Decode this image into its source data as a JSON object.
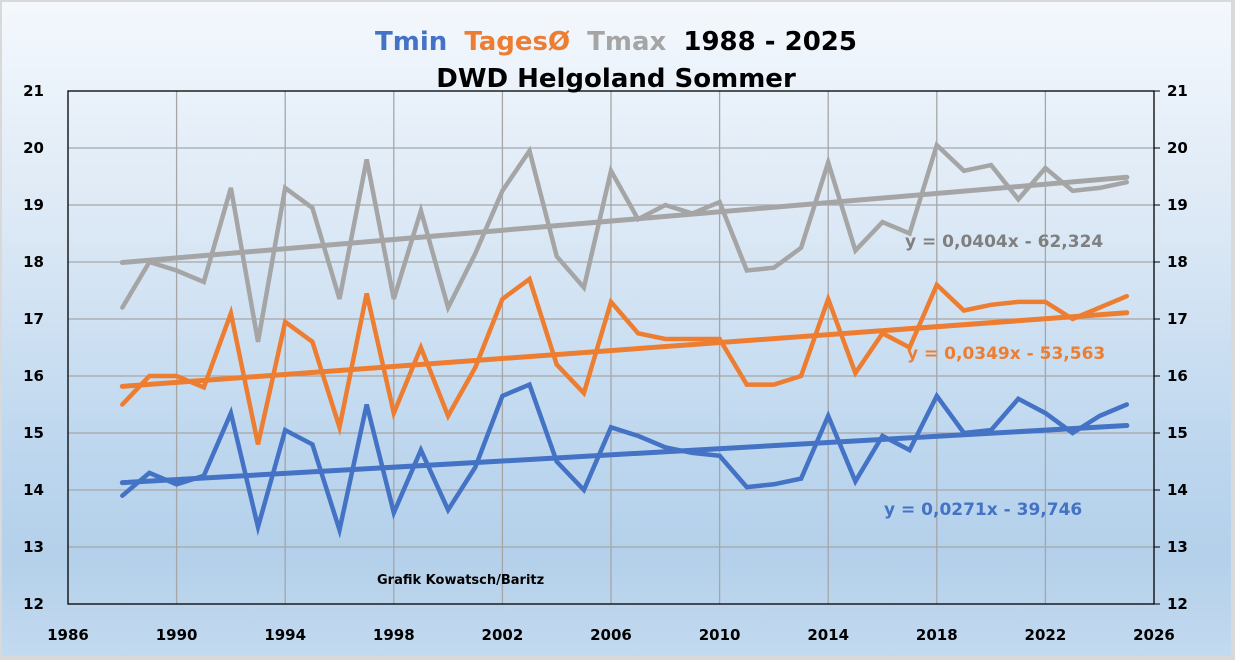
{
  "chart_data": {
    "type": "line",
    "title_parts": [
      {
        "text": "Tmin",
        "color": "#4472C4"
      },
      {
        "text": "TagesØ",
        "color": "#ED7D31"
      },
      {
        "text": "Tmax",
        "color": "#A5A5A5"
      },
      {
        "text": "1988 - 2025",
        "color": "#000000"
      }
    ],
    "subtitle": "DWD Helgoland Sommer",
    "xlabel": "",
    "ylabel": "",
    "xlim": [
      1986,
      2026
    ],
    "ylim": [
      12,
      21
    ],
    "x_ticks": [
      1986,
      1990,
      1994,
      1998,
      2002,
      2006,
      2010,
      2014,
      2018,
      2022,
      2026
    ],
    "y_ticks": [
      12,
      13,
      14,
      15,
      16,
      17,
      18,
      19,
      20,
      21
    ],
    "grid": true,
    "legend": "none",
    "x": [
      1988,
      1989,
      1990,
      1991,
      1992,
      1993,
      1994,
      1995,
      1996,
      1997,
      1998,
      1999,
      2000,
      2001,
      2002,
      2003,
      2004,
      2005,
      2006,
      2007,
      2008,
      2009,
      2010,
      2011,
      2012,
      2013,
      2014,
      2015,
      2016,
      2017,
      2018,
      2019,
      2020,
      2021,
      2022,
      2023,
      2024,
      2025
    ],
    "series": [
      {
        "name": "Tmax",
        "color": "#A5A5A5",
        "values": [
          17.2,
          18.0,
          17.85,
          17.65,
          19.3,
          16.6,
          19.3,
          18.95,
          17.35,
          19.8,
          17.35,
          18.9,
          17.2,
          18.15,
          19.25,
          19.95,
          18.1,
          17.55,
          19.6,
          18.75,
          19.0,
          18.85,
          19.05,
          17.85,
          17.9,
          18.25,
          19.75,
          18.2,
          18.7,
          18.5,
          20.05,
          19.6,
          19.7,
          19.1,
          19.65,
          19.25,
          19.3,
          19.4
        ],
        "trend": {
          "slope": 0.0404,
          "intercept": -62.324,
          "label": "y = 0,0404x - 62,324"
        }
      },
      {
        "name": "TagesØ",
        "color": "#ED7D31",
        "values": [
          15.5,
          16.0,
          16.0,
          15.8,
          17.1,
          14.8,
          16.95,
          16.6,
          15.1,
          17.45,
          15.35,
          16.5,
          15.3,
          16.15,
          17.35,
          17.7,
          16.2,
          15.7,
          17.3,
          16.75,
          16.65,
          16.65,
          16.65,
          15.85,
          15.85,
          16.0,
          17.35,
          16.05,
          16.75,
          16.5,
          17.6,
          17.15,
          17.25,
          17.3,
          17.3,
          17.0,
          17.2,
          17.4
        ],
        "trend": {
          "slope": 0.0349,
          "intercept": -53.563,
          "label": "y = 0,0349x - 53,563"
        }
      },
      {
        "name": "Tmin",
        "color": "#4472C4",
        "values": [
          13.9,
          14.3,
          14.1,
          14.25,
          15.35,
          13.35,
          15.05,
          14.8,
          13.3,
          15.5,
          13.6,
          14.7,
          13.65,
          14.4,
          15.65,
          15.85,
          14.5,
          14.0,
          15.1,
          14.95,
          14.75,
          14.65,
          14.6,
          14.05,
          14.1,
          14.2,
          15.3,
          14.15,
          14.95,
          14.7,
          15.65,
          15.0,
          15.05,
          15.6,
          15.35,
          15.0,
          15.3,
          15.5
        ],
        "trend": {
          "slope": 0.0271,
          "intercept": -39.746,
          "label": "y = 0,0271x - 39,746"
        }
      }
    ],
    "annotations": [
      {
        "text": "Grafik Kowatsch/Baritz",
        "x": 1996.5,
        "y": 12.5
      }
    ]
  }
}
